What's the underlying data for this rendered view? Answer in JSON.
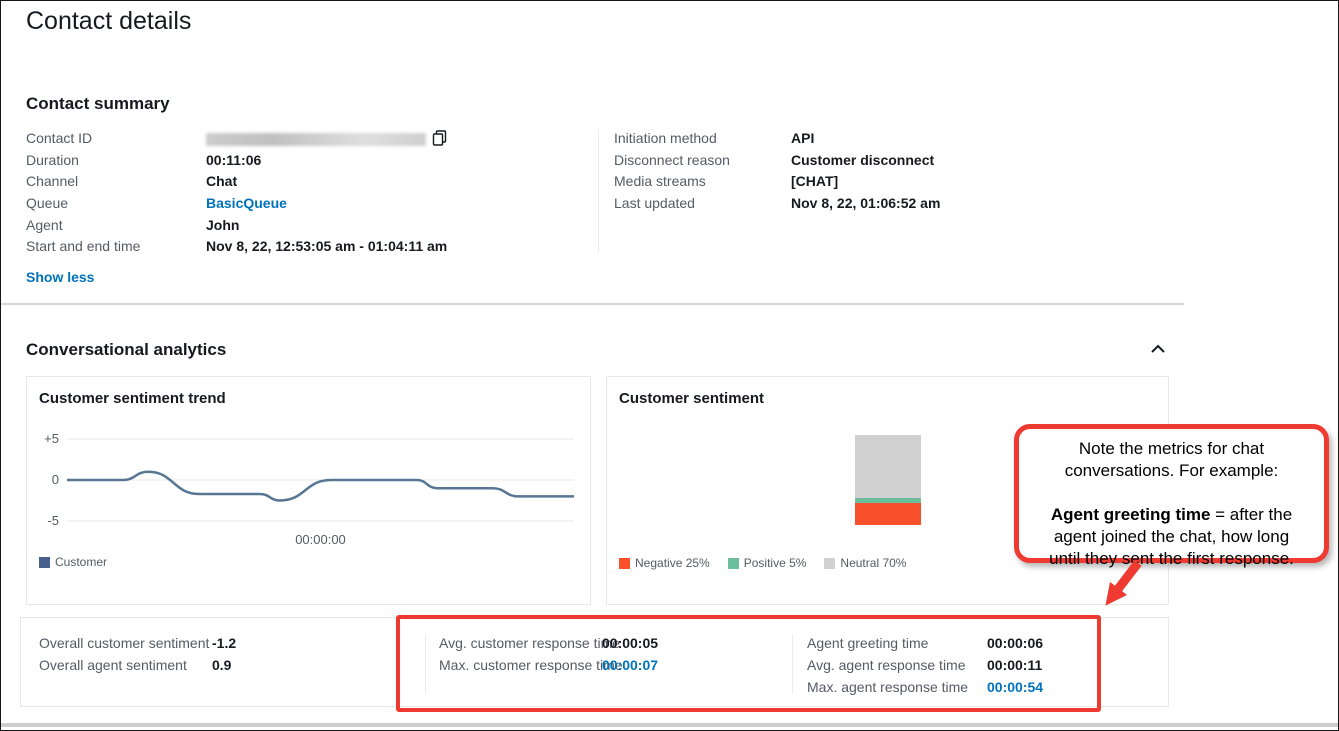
{
  "page": {
    "title": "Contact details"
  },
  "colors": {
    "link": "#0073bb",
    "label_gray": "#545b64",
    "text_dark": "#16191f",
    "negative": "#f9502c",
    "positive": "#6cbf9c",
    "neutral": "#d1d1d1",
    "trend_line": "#567693",
    "trend_legend_swatch": "#45618c",
    "annotation_red": "#ee3a31",
    "panel_border": "#e7e7e7",
    "divider": "#eaeded"
  },
  "contact_summary": {
    "heading": "Contact summary",
    "left_fields": [
      {
        "label": "Contact ID",
        "value": "",
        "redacted": true
      },
      {
        "label": "Duration",
        "value": "00:11:06"
      },
      {
        "label": "Channel",
        "value": "Chat"
      },
      {
        "label": "Queue",
        "value": "BasicQueue",
        "link": true
      },
      {
        "label": "Agent",
        "value": "John"
      },
      {
        "label": "Start and end time",
        "value": "Nov 8, 22, 12:53:05 am - 01:04:11 am"
      }
    ],
    "right_fields": [
      {
        "label": "Initiation method",
        "value": "API"
      },
      {
        "label": "Disconnect reason",
        "value": "Customer disconnect"
      },
      {
        "label": "Media streams",
        "value": "[CHAT]"
      },
      {
        "label": "Last updated",
        "value": "Nov 8, 22, 01:06:52 am"
      }
    ],
    "show_less_label": "Show less"
  },
  "analytics": {
    "heading": "Conversational analytics"
  },
  "chart_data": [
    {
      "type": "line",
      "title": "Customer sentiment trend",
      "ylim": [
        -5,
        5
      ],
      "yticks": [
        {
          "label": "+5",
          "value": 5
        },
        {
          "label": "0",
          "value": 0
        },
        {
          "label": "-5",
          "value": -5
        }
      ],
      "x_axis_tick": "00:00:00",
      "legend_position": "bottom-left",
      "series": [
        {
          "name": "Customer",
          "points": [
            [
              0,
              0
            ],
            [
              0.11,
              0
            ],
            [
              0.16,
              1
            ],
            [
              0.26,
              -1.7
            ],
            [
              0.38,
              -1.7
            ],
            [
              0.42,
              -2.5
            ],
            [
              0.52,
              0
            ],
            [
              0.69,
              0
            ],
            [
              0.73,
              -1
            ],
            [
              0.84,
              -1
            ],
            [
              0.89,
              -2
            ],
            [
              1,
              -2
            ]
          ]
        }
      ]
    },
    {
      "type": "stacked_bar",
      "title": "Customer sentiment",
      "segments_top_to_bottom": [
        {
          "name": "Neutral",
          "pct": 70
        },
        {
          "name": "Positive",
          "pct": 5
        },
        {
          "name": "Negative",
          "pct": 25
        }
      ],
      "legend": [
        {
          "label": "Negative 25%"
        },
        {
          "label": "Positive 5%"
        },
        {
          "label": "Neutral 70%"
        }
      ]
    }
  ],
  "metrics_panel": {
    "columns": [
      {
        "rows": [
          {
            "label": "Overall customer sentiment",
            "value": "-1.2"
          },
          {
            "label": "Overall agent sentiment",
            "value": "0.9"
          }
        ]
      },
      {
        "rows": [
          {
            "label": "Avg. customer response time",
            "value": "00:00:05"
          },
          {
            "label": "Max. customer response time",
            "value": "00:00:07",
            "link": true
          }
        ]
      },
      {
        "rows": [
          {
            "label": "Agent greeting time",
            "value": "00:00:06"
          },
          {
            "label": "Avg. agent response time",
            "value": "00:00:11"
          },
          {
            "label": "Max. agent response time",
            "value": "00:00:54",
            "link": true
          }
        ]
      }
    ]
  },
  "annotation": {
    "callout": {
      "para1": "Note the metrics for chat\nconversations. For example:",
      "bold_term": "Agent greeting time",
      "para2_rest": " = after the\nagent joined the chat, how long\nuntil they sent the first response."
    }
  }
}
